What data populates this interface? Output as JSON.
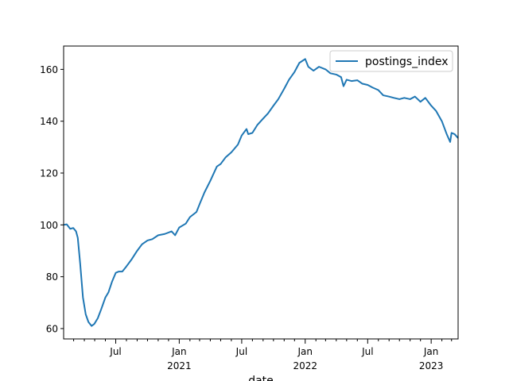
{
  "chart_data": {
    "type": "line",
    "title": "",
    "xlabel": "date",
    "ylabel": "",
    "xlim": [
      "2020-02-01",
      "2023-03-20"
    ],
    "ylim": [
      56,
      169
    ],
    "grid": false,
    "legend_position": "upper-right",
    "y_ticks": [
      60,
      80,
      100,
      120,
      140,
      160
    ],
    "x_ticks": [
      {
        "date": "2020-07-01",
        "label": "Jul",
        "sublabel": ""
      },
      {
        "date": "2021-01-01",
        "label": "Jan",
        "sublabel": "2021"
      },
      {
        "date": "2021-07-01",
        "label": "Jul",
        "sublabel": ""
      },
      {
        "date": "2022-01-01",
        "label": "Jan",
        "sublabel": "2022"
      },
      {
        "date": "2022-07-01",
        "label": "Jul",
        "sublabel": ""
      },
      {
        "date": "2023-01-01",
        "label": "Jan",
        "sublabel": "2023"
      }
    ],
    "x_minor_ticks": [
      "2020-03-01",
      "2020-04-01",
      "2020-05-01",
      "2020-06-01",
      "2020-08-01",
      "2020-09-01",
      "2020-10-01",
      "2020-11-01",
      "2020-12-01",
      "2021-02-01",
      "2021-03-01",
      "2021-04-01",
      "2021-05-01",
      "2021-06-01",
      "2021-08-01",
      "2021-09-01",
      "2021-10-01",
      "2021-11-01",
      "2021-12-01",
      "2022-02-01",
      "2022-03-01",
      "2022-04-01",
      "2022-05-01",
      "2022-06-01",
      "2022-08-01",
      "2022-09-01",
      "2022-10-01",
      "2022-11-01",
      "2022-12-01",
      "2023-02-01",
      "2023-03-01"
    ],
    "series": [
      {
        "name": "postings_index",
        "color": "#1f77b4",
        "points": [
          [
            "2020-02-01",
            100.0
          ],
          [
            "2020-02-10",
            100.2
          ],
          [
            "2020-02-20",
            98.5
          ],
          [
            "2020-02-29",
            98.8
          ],
          [
            "2020-03-08",
            97.5
          ],
          [
            "2020-03-13",
            95.0
          ],
          [
            "2020-03-20",
            85.0
          ],
          [
            "2020-03-28",
            72.0
          ],
          [
            "2020-04-05",
            65.5
          ],
          [
            "2020-04-13",
            62.5
          ],
          [
            "2020-04-22",
            61.0
          ],
          [
            "2020-04-30",
            61.8
          ],
          [
            "2020-05-10",
            64.0
          ],
          [
            "2020-05-20",
            67.5
          ],
          [
            "2020-06-01",
            72.0
          ],
          [
            "2020-06-10",
            74.0
          ],
          [
            "2020-06-20",
            78.0
          ],
          [
            "2020-07-01",
            81.5
          ],
          [
            "2020-07-10",
            82.0
          ],
          [
            "2020-07-20",
            82.0
          ],
          [
            "2020-08-01",
            84.0
          ],
          [
            "2020-08-15",
            86.5
          ],
          [
            "2020-09-01",
            90.0
          ],
          [
            "2020-09-15",
            92.5
          ],
          [
            "2020-10-01",
            94.0
          ],
          [
            "2020-10-15",
            94.5
          ],
          [
            "2020-11-01",
            96.0
          ],
          [
            "2020-11-20",
            96.5
          ],
          [
            "2020-12-10",
            97.5
          ],
          [
            "2020-12-20",
            96.0
          ],
          [
            "2021-01-01",
            99.0
          ],
          [
            "2021-01-20",
            100.5
          ],
          [
            "2021-02-01",
            103.0
          ],
          [
            "2021-02-20",
            105.0
          ],
          [
            "2021-03-01",
            108.0
          ],
          [
            "2021-03-15",
            112.5
          ],
          [
            "2021-04-01",
            117.0
          ],
          [
            "2021-04-20",
            122.5
          ],
          [
            "2021-05-01",
            123.5
          ],
          [
            "2021-05-15",
            126.0
          ],
          [
            "2021-06-01",
            128.0
          ],
          [
            "2021-06-20",
            131.0
          ],
          [
            "2021-07-01",
            134.5
          ],
          [
            "2021-07-15",
            137.0
          ],
          [
            "2021-07-20",
            135.0
          ],
          [
            "2021-08-01",
            135.5
          ],
          [
            "2021-08-15",
            138.5
          ],
          [
            "2021-09-01",
            141.0
          ],
          [
            "2021-09-15",
            143.0
          ],
          [
            "2021-10-01",
            146.0
          ],
          [
            "2021-10-15",
            148.5
          ],
          [
            "2021-11-01",
            152.5
          ],
          [
            "2021-11-15",
            156.0
          ],
          [
            "2021-12-01",
            159.0
          ],
          [
            "2021-12-15",
            162.5
          ],
          [
            "2022-01-01",
            164.0
          ],
          [
            "2022-01-10",
            161.0
          ],
          [
            "2022-01-25",
            159.5
          ],
          [
            "2022-02-10",
            161.0
          ],
          [
            "2022-03-01",
            160.0
          ],
          [
            "2022-03-15",
            158.5
          ],
          [
            "2022-04-01",
            158.0
          ],
          [
            "2022-04-15",
            157.0
          ],
          [
            "2022-04-22",
            153.5
          ],
          [
            "2022-05-01",
            156.0
          ],
          [
            "2022-05-15",
            155.5
          ],
          [
            "2022-06-01",
            155.8
          ],
          [
            "2022-06-15",
            154.5
          ],
          [
            "2022-07-01",
            154.0
          ],
          [
            "2022-07-15",
            153.0
          ],
          [
            "2022-08-01",
            152.0
          ],
          [
            "2022-08-15",
            150.0
          ],
          [
            "2022-09-01",
            149.5
          ],
          [
            "2022-09-15",
            149.0
          ],
          [
            "2022-10-01",
            148.5
          ],
          [
            "2022-10-15",
            149.0
          ],
          [
            "2022-11-01",
            148.5
          ],
          [
            "2022-11-15",
            149.5
          ],
          [
            "2022-12-01",
            147.5
          ],
          [
            "2022-12-15",
            149.0
          ],
          [
            "2023-01-01",
            146.0
          ],
          [
            "2023-01-15",
            144.0
          ],
          [
            "2023-02-01",
            140.0
          ],
          [
            "2023-02-15",
            135.0
          ],
          [
            "2023-02-25",
            132.0
          ],
          [
            "2023-03-01",
            135.5
          ],
          [
            "2023-03-10",
            135.0
          ],
          [
            "2023-03-20",
            133.5
          ]
        ]
      }
    ]
  }
}
